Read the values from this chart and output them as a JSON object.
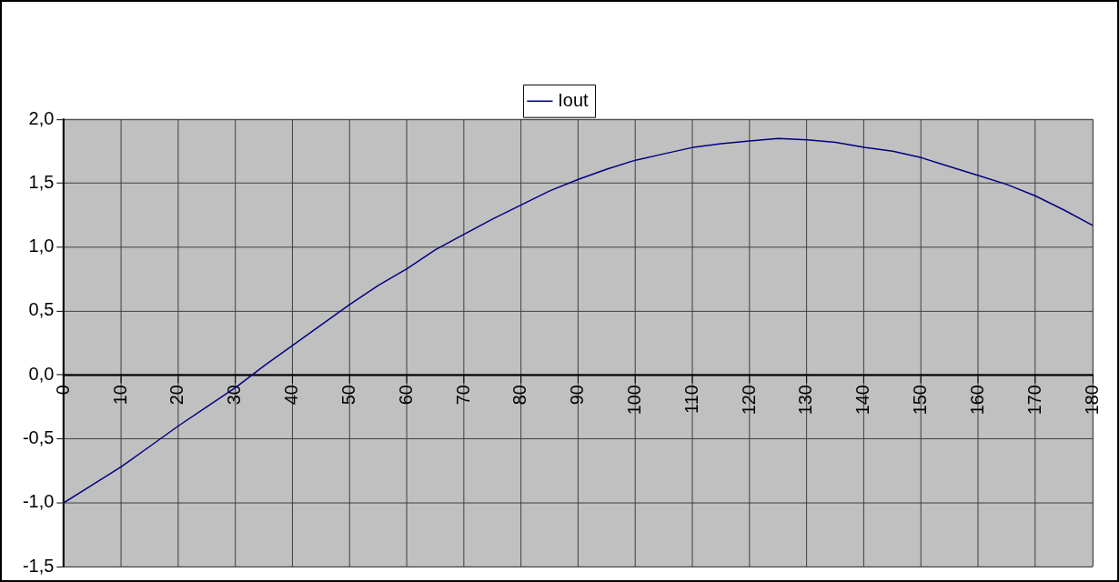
{
  "chart_data": {
    "type": "line",
    "x": [
      0,
      5,
      10,
      15,
      20,
      25,
      30,
      35,
      40,
      45,
      50,
      55,
      60,
      65,
      70,
      75,
      80,
      85,
      90,
      95,
      100,
      105,
      110,
      115,
      120,
      125,
      130,
      135,
      140,
      145,
      150,
      155,
      160,
      165,
      170,
      175,
      180
    ],
    "series": [
      {
        "name": "Iout",
        "color": "#000080",
        "values": [
          -1.0,
          -0.86,
          -0.72,
          -0.56,
          -0.4,
          -0.25,
          -0.1,
          0.07,
          0.23,
          0.39,
          0.55,
          0.7,
          0.83,
          0.98,
          1.1,
          1.22,
          1.33,
          1.44,
          1.53,
          1.61,
          1.68,
          1.73,
          1.78,
          1.81,
          1.83,
          1.85,
          1.84,
          1.82,
          1.78,
          1.75,
          1.7,
          1.63,
          1.56,
          1.49,
          1.4,
          1.29,
          1.17
        ]
      }
    ],
    "xlim": [
      0,
      180
    ],
    "xticks": [
      0,
      10,
      20,
      30,
      40,
      50,
      60,
      70,
      80,
      90,
      100,
      110,
      120,
      130,
      140,
      150,
      160,
      170,
      180
    ],
    "ylim": [
      -1.5,
      2.0
    ],
    "yticks": [
      {
        "value": -1.5,
        "label": "-1,5"
      },
      {
        "value": -1.0,
        "label": "-1,0"
      },
      {
        "value": -0.5,
        "label": "-0,5"
      },
      {
        "value": 0,
        "label": "0,0"
      },
      {
        "value": 0.5,
        "label": "0,5"
      },
      {
        "value": 1.0,
        "label": "1,0"
      },
      {
        "value": 1.5,
        "label": "1,5"
      },
      {
        "value": 2.0,
        "label": "2,0"
      }
    ],
    "grid": true,
    "legend": "top",
    "marker": "none",
    "line_style": "solid"
  }
}
